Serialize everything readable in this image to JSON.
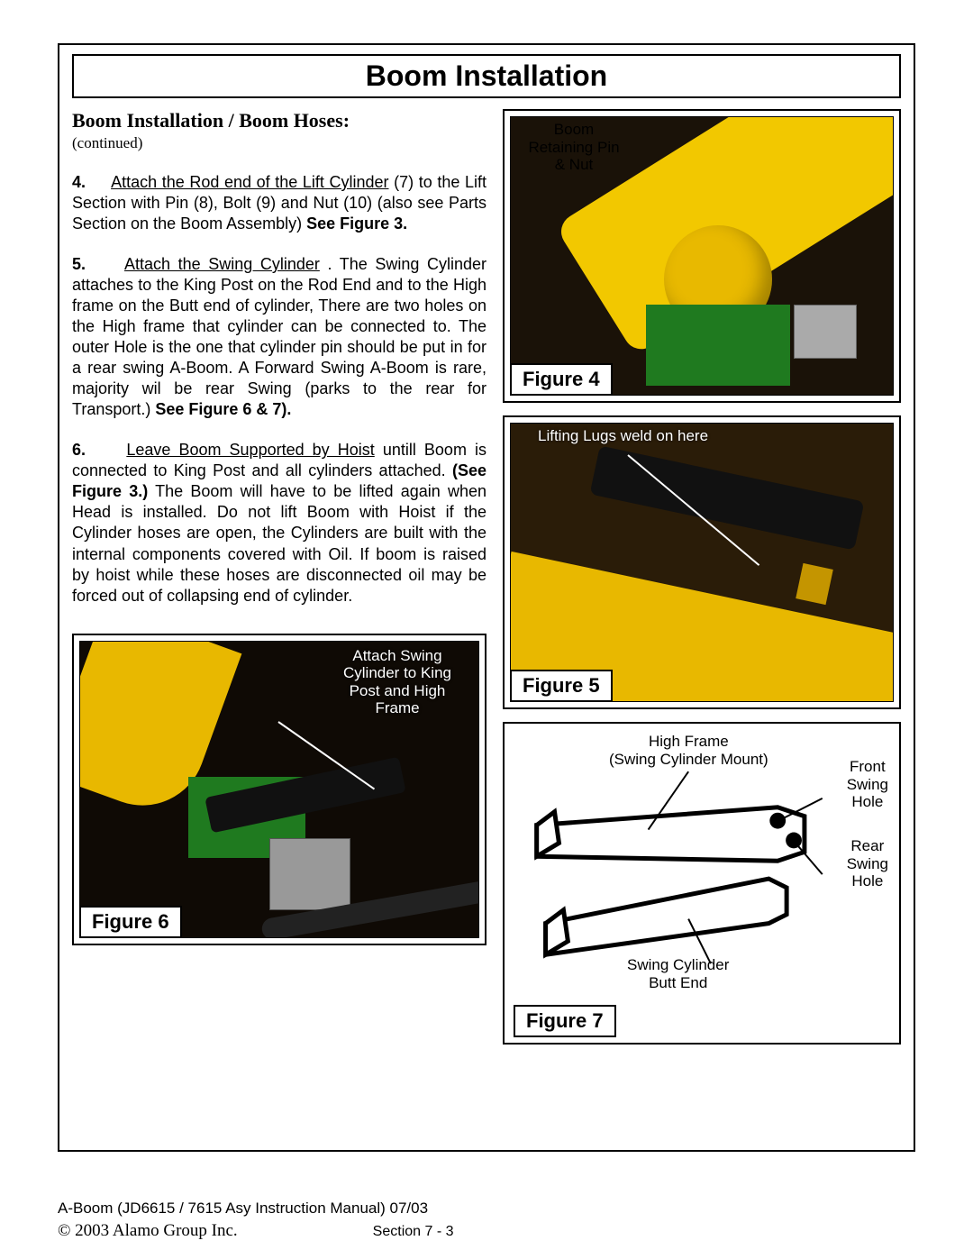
{
  "header": {
    "title": "Boom Installation"
  },
  "section": {
    "heading": "Boom Installation / Boom  Hoses:",
    "continued": "(continued)"
  },
  "steps": {
    "s4": {
      "num": "4.",
      "lead": "Attach the Rod end of the Lift Cylinder",
      "rest": " (7) to the Lift Section with Pin (8), Bolt (9) and Nut (10) (also see Parts Section on the Boom Assembly) ",
      "bold": "See Figure 3."
    },
    "s5": {
      "num": "5.",
      "lead": "Attach the Swing Cylinder",
      "rest1": " . The Swing Cylinder attaches to the King Post on the Rod End and to the High frame on the Butt end of cylinder, There are two holes on the High frame that cylinder can be connected to. The outer Hole is the one that cylinder pin should be put in for a rear swing A-Boom. A Forward Swing A-Boom is rare, majority wil be rear Swing (parks to the rear for Transport.) ",
      "bold": "See Figure 6 & 7)."
    },
    "s6": {
      "num": "6.",
      "lead": "Leave Boom Supported by Hoist",
      "rest1": " untill Boom is connected to King Post and all cylinders attached. ",
      "mid_bold": "(See Figure 3.)",
      "rest2": " The Boom will have to be lifted again when Head is installed. Do not lift Boom with Hoist if the Cylinder hoses are open, the Cylinders are built with the internal components covered with Oil. If boom is raised by hoist while these hoses are disconnected oil may be forced out of collapsing end of cylinder."
    }
  },
  "figures": {
    "f4": {
      "label": "Figure 4",
      "callout": "Boom\nRetaining Pin\n& Nut"
    },
    "f5": {
      "label": "Figure 5",
      "callout": "Lifting Lugs weld on here"
    },
    "f6": {
      "label": "Figure 6",
      "callout": "Attach Swing\nCylinder to King\nPost and High\nFrame"
    },
    "f7": {
      "label": "Figure 7",
      "high_frame": "High Frame\n(Swing Cylinder Mount)",
      "front": "Front\nSwing\nHole",
      "rear": "Rear\nSwing\nHole",
      "butt": "Swing Cylinder\nButt End"
    }
  },
  "footer": {
    "line1": "A-Boom  (JD6615 / 7615 Asy Instruction  Manual) 07/03",
    "copyright": "© 2003 Alamo Group Inc.",
    "section": "Section 7 - 3"
  },
  "colors": {
    "yellow": "#e8b800",
    "green": "#1f7a1f",
    "dark": "#111111",
    "border": "#000000",
    "white": "#ffffff"
  }
}
